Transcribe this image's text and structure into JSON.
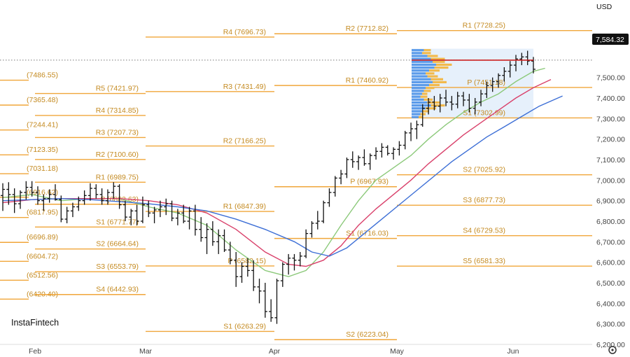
{
  "brand": "InstaFintech",
  "currency": "USD",
  "price_label": "7,584.32",
  "settings_icon": "gear-icon",
  "colors": {
    "pivot_line": "#f0a63a",
    "pivot_label": "#c48a20",
    "bar": "#111111",
    "ma_fast": "#8cc97a",
    "ma_mid": "#d9416b",
    "ma_slow": "#3d6fd6",
    "profile_blue": "#5b9bea",
    "profile_orange": "#f2b94b",
    "profile_zone": "#e6f0fb",
    "last_price_line": "#cc2222",
    "price_tag_bg": "#111111"
  },
  "chart_data": {
    "type": "ohlc-bar",
    "ylim": [
      6200,
      7850
    ],
    "y_ticks": [
      {
        "v": 6200,
        "label": "6,200.00"
      },
      {
        "v": 6300,
        "label": "6,300.00"
      },
      {
        "v": 6400,
        "label": "6,400.00"
      },
      {
        "v": 6500,
        "label": "6,500.00"
      },
      {
        "v": 6600,
        "label": "6,600.00"
      },
      {
        "v": 6700,
        "label": "6,700.00"
      },
      {
        "v": 6800,
        "label": "6,800.00"
      },
      {
        "v": 6900,
        "label": "6,900.00"
      },
      {
        "v": 7000,
        "label": "7,000.00"
      },
      {
        "v": 7100,
        "label": "7,100.00"
      },
      {
        "v": 7200,
        "label": "7,200.00"
      },
      {
        "v": 7300,
        "label": "7,300.00"
      },
      {
        "v": 7400,
        "label": "7,400.00"
      },
      {
        "v": 7500,
        "label": "7,500.00"
      },
      {
        "v": 7600,
        "label": "7,600.00"
      },
      {
        "v": 7700,
        "label": "7,700.00"
      }
    ],
    "x_ticks": [
      "Feb",
      "Mar",
      "Apr",
      "May",
      "Jun"
    ],
    "pivot_levels": [
      {
        "period": "jan",
        "label": "(7486.55)",
        "value": 7486.55
      },
      {
        "period": "jan",
        "label": "(7365.48)",
        "value": 7365.48
      },
      {
        "period": "jan",
        "label": "(7244.41)",
        "value": 7244.41
      },
      {
        "period": "jan",
        "label": "(7123.35)",
        "value": 7123.35
      },
      {
        "period": "jan",
        "label": "(7031.18)",
        "value": 7031.18
      },
      {
        "period": "jan",
        "label": "(6916.62)",
        "value": 6916.62
      },
      {
        "period": "jan",
        "label": "(6817.95)",
        "value": 6817.95
      },
      {
        "period": "jan",
        "label": "(6696.89)",
        "value": 6696.89
      },
      {
        "period": "jan",
        "label": "(6604.72)",
        "value": 6604.72
      },
      {
        "period": "jan",
        "label": "(6512.56)",
        "value": 6512.56
      },
      {
        "period": "jan",
        "label": "(6420.40)",
        "value": 6420.4
      },
      {
        "period": "feb",
        "label": "R5 (7421.97)",
        "value": 7421.97
      },
      {
        "period": "feb",
        "label": "R4 (7314.85)",
        "value": 7314.85
      },
      {
        "period": "feb",
        "label": "R3 (7207.73)",
        "value": 7207.73
      },
      {
        "period": "feb",
        "label": "R2 (7100.60)",
        "value": 7100.6
      },
      {
        "period": "feb",
        "label": "R1 (6989.75)",
        "value": 6989.75
      },
      {
        "period": "feb",
        "label": "P (6882.63)",
        "value": 6882.63
      },
      {
        "period": "feb",
        "label": "S1 (6771.77)",
        "value": 6771.77
      },
      {
        "period": "feb",
        "label": "S2 (6664.64)",
        "value": 6664.64
      },
      {
        "period": "feb",
        "label": "S3 (6553.79)",
        "value": 6553.79
      },
      {
        "period": "feb",
        "label": "S4 (6442.93)",
        "value": 6442.93
      },
      {
        "period": "mar",
        "label": "R4 (7696.73)",
        "value": 7696.73
      },
      {
        "period": "mar",
        "label": "R3 (7431.49)",
        "value": 7431.49
      },
      {
        "period": "mar",
        "label": "R2 (7166.25)",
        "value": 7166.25
      },
      {
        "period": "mar",
        "label": "R1 (6847.39)",
        "value": 6847.39
      },
      {
        "period": "mar",
        "label": "P (6582.15)",
        "value": 6582.15
      },
      {
        "period": "mar",
        "label": "S1 (6263.29)",
        "value": 6263.29
      },
      {
        "period": "apr",
        "label": "R2 (7712.82)",
        "value": 7712.82
      },
      {
        "period": "apr",
        "label": "R1 (7460.92)",
        "value": 7460.92
      },
      {
        "period": "apr",
        "label": "P (6967.93)",
        "value": 6967.93
      },
      {
        "period": "apr",
        "label": "S1 (6716.03)",
        "value": 6716.03
      },
      {
        "period": "apr",
        "label": "S2 (6223.04)",
        "value": 6223.04
      },
      {
        "period": "may",
        "label": "R1 (7728.25)",
        "value": 7728.25
      },
      {
        "period": "may",
        "label": "P (7451.18)",
        "value": 7451.18
      },
      {
        "period": "may",
        "label": "S1 (7302.99)",
        "value": 7302.99
      },
      {
        "period": "may",
        "label": "S2 (7025.92)",
        "value": 7025.92
      },
      {
        "period": "may",
        "label": "S3 (6877.73)",
        "value": 6877.73
      },
      {
        "period": "may",
        "label": "S4 (6729.53)",
        "value": 6729.53
      },
      {
        "period": "may",
        "label": "S5 (6581.33)",
        "value": 6581.33
      }
    ],
    "ohlc": [
      [
        6925,
        6985,
        6850,
        6955
      ],
      [
        6955,
        6990,
        6880,
        6930
      ],
      [
        6930,
        6960,
        6840,
        6885
      ],
      [
        6885,
        6950,
        6860,
        6940
      ],
      [
        6940,
        6995,
        6905,
        6965
      ],
      [
        6965,
        6995,
        6920,
        6940
      ],
      [
        6940,
        6970,
        6880,
        6900
      ],
      [
        6900,
        6930,
        6850,
        6910
      ],
      [
        6910,
        6955,
        6890,
        6930
      ],
      [
        6930,
        6980,
        6900,
        6905
      ],
      [
        6905,
        6925,
        6795,
        6810
      ],
      [
        6810,
        6870,
        6790,
        6850
      ],
      [
        6850,
        6890,
        6820,
        6870
      ],
      [
        6870,
        6920,
        6850,
        6900
      ],
      [
        6900,
        6950,
        6880,
        6925
      ],
      [
        6925,
        6985,
        6900,
        6960
      ],
      [
        6960,
        6980,
        6910,
        6930
      ],
      [
        6930,
        6960,
        6880,
        6900
      ],
      [
        6900,
        6955,
        6880,
        6940
      ],
      [
        6940,
        6990,
        6910,
        6970
      ],
      [
        6970,
        6980,
        6860,
        6880
      ],
      [
        6880,
        6900,
        6800,
        6820
      ],
      [
        6820,
        6860,
        6780,
        6850
      ],
      [
        6850,
        6880,
        6780,
        6800
      ],
      [
        6800,
        6920,
        6790,
        6880
      ],
      [
        6880,
        6900,
        6820,
        6840
      ],
      [
        6840,
        6870,
        6790,
        6855
      ],
      [
        6855,
        6900,
        6820,
        6870
      ],
      [
        6870,
        6910,
        6830,
        6885
      ],
      [
        6885,
        6900,
        6800,
        6815
      ],
      [
        6815,
        6860,
        6780,
        6840
      ],
      [
        6840,
        6880,
        6790,
        6800
      ],
      [
        6800,
        6870,
        6760,
        6850
      ],
      [
        6850,
        6880,
        6730,
        6760
      ],
      [
        6760,
        6820,
        6700,
        6720
      ],
      [
        6720,
        6790,
        6640,
        6760
      ],
      [
        6760,
        6800,
        6680,
        6700
      ],
      [
        6700,
        6760,
        6640,
        6730
      ],
      [
        6730,
        6760,
        6650,
        6660
      ],
      [
        6660,
        6700,
        6590,
        6610
      ],
      [
        6610,
        6650,
        6480,
        6530
      ],
      [
        6530,
        6600,
        6500,
        6580
      ],
      [
        6580,
        6620,
        6530,
        6560
      ],
      [
        6560,
        6610,
        6460,
        6480
      ],
      [
        6480,
        6520,
        6400,
        6460
      ],
      [
        6460,
        6500,
        6330,
        6360
      ],
      [
        6360,
        6420,
        6310,
        6330
      ],
      [
        6330,
        6520,
        6300,
        6510
      ],
      [
        6510,
        6600,
        6480,
        6590
      ],
      [
        6590,
        6640,
        6540,
        6620
      ],
      [
        6620,
        6640,
        6560,
        6610
      ],
      [
        6610,
        6650,
        6580,
        6630
      ],
      [
        6630,
        6760,
        6620,
        6740
      ],
      [
        6740,
        6800,
        6720,
        6790
      ],
      [
        6790,
        6850,
        6760,
        6800
      ],
      [
        6800,
        6900,
        6790,
        6890
      ],
      [
        6890,
        6960,
        6870,
        6940
      ],
      [
        6940,
        7020,
        6920,
        7010
      ],
      [
        7010,
        7050,
        6980,
        7030
      ],
      [
        7030,
        7110,
        7010,
        7100
      ],
      [
        7100,
        7140,
        7060,
        7090
      ],
      [
        7090,
        7120,
        7050,
        7110
      ],
      [
        7110,
        7150,
        7070,
        7080
      ],
      [
        7080,
        7130,
        7050,
        7120
      ],
      [
        7120,
        7160,
        7100,
        7140
      ],
      [
        7140,
        7180,
        7110,
        7160
      ],
      [
        7160,
        7170,
        7120,
        7130
      ],
      [
        7130,
        7160,
        7100,
        7150
      ],
      [
        7150,
        7190,
        7120,
        7170
      ],
      [
        7170,
        7240,
        7150,
        7230
      ],
      [
        7230,
        7280,
        7190,
        7250
      ],
      [
        7250,
        7290,
        7200,
        7270
      ],
      [
        7270,
        7370,
        7260,
        7350
      ],
      [
        7350,
        7400,
        7320,
        7380
      ],
      [
        7380,
        7410,
        7340,
        7360
      ],
      [
        7360,
        7420,
        7330,
        7400
      ],
      [
        7400,
        7440,
        7360,
        7380
      ],
      [
        7380,
        7410,
        7340,
        7370
      ],
      [
        7370,
        7430,
        7350,
        7410
      ],
      [
        7410,
        7430,
        7360,
        7390
      ],
      [
        7390,
        7420,
        7330,
        7350
      ],
      [
        7350,
        7400,
        7320,
        7380
      ],
      [
        7380,
        7440,
        7360,
        7420
      ],
      [
        7420,
        7480,
        7400,
        7460
      ],
      [
        7460,
        7500,
        7430,
        7480
      ],
      [
        7480,
        7520,
        7450,
        7510
      ],
      [
        7510,
        7550,
        7480,
        7530
      ],
      [
        7530,
        7580,
        7500,
        7560
      ],
      [
        7560,
        7610,
        7530,
        7590
      ],
      [
        7590,
        7620,
        7560,
        7600
      ],
      [
        7600,
        7630,
        7560,
        7580
      ],
      [
        7580,
        7600,
        7520,
        7540
      ]
    ],
    "moving_averages": [
      {
        "key": "ma_fast",
        "values": [
          [
            0,
            6915
          ],
          [
            5,
            6930
          ],
          [
            10,
            6900
          ],
          [
            15,
            6910
          ],
          [
            20,
            6910
          ],
          [
            25,
            6870
          ],
          [
            30,
            6840
          ],
          [
            35,
            6780
          ],
          [
            40,
            6660
          ],
          [
            45,
            6560
          ],
          [
            49,
            6530
          ],
          [
            52,
            6560
          ],
          [
            55,
            6650
          ],
          [
            58,
            6780
          ],
          [
            61,
            6900
          ],
          [
            64,
            7000
          ],
          [
            67,
            7060
          ],
          [
            70,
            7120
          ],
          [
            73,
            7200
          ],
          [
            76,
            7270
          ],
          [
            79,
            7330
          ],
          [
            82,
            7380
          ],
          [
            85,
            7420
          ],
          [
            88,
            7480
          ],
          [
            91,
            7530
          ],
          [
            93,
            7545
          ]
        ]
      },
      {
        "key": "ma_mid",
        "values": [
          [
            0,
            6890
          ],
          [
            5,
            6905
          ],
          [
            10,
            6910
          ],
          [
            15,
            6910
          ],
          [
            20,
            6910
          ],
          [
            25,
            6900
          ],
          [
            30,
            6880
          ],
          [
            35,
            6840
          ],
          [
            40,
            6760
          ],
          [
            45,
            6650
          ],
          [
            49,
            6590
          ],
          [
            52,
            6580
          ],
          [
            55,
            6610
          ],
          [
            58,
            6680
          ],
          [
            61,
            6780
          ],
          [
            64,
            6860
          ],
          [
            67,
            6930
          ],
          [
            70,
            7000
          ],
          [
            73,
            7080
          ],
          [
            76,
            7150
          ],
          [
            79,
            7220
          ],
          [
            82,
            7280
          ],
          [
            85,
            7340
          ],
          [
            88,
            7400
          ],
          [
            91,
            7450
          ],
          [
            94,
            7490
          ]
        ]
      },
      {
        "key": "ma_slow",
        "values": [
          [
            0,
            6900
          ],
          [
            5,
            6905
          ],
          [
            10,
            6910
          ],
          [
            15,
            6905
          ],
          [
            20,
            6895
          ],
          [
            25,
            6885
          ],
          [
            30,
            6870
          ],
          [
            35,
            6850
          ],
          [
            40,
            6810
          ],
          [
            45,
            6760
          ],
          [
            50,
            6700
          ],
          [
            53,
            6650
          ],
          [
            56,
            6630
          ],
          [
            59,
            6670
          ],
          [
            62,
            6740
          ],
          [
            65,
            6810
          ],
          [
            68,
            6880
          ],
          [
            71,
            6950
          ],
          [
            74,
            7020
          ],
          [
            77,
            7090
          ],
          [
            80,
            7150
          ],
          [
            83,
            7210
          ],
          [
            86,
            7260
          ],
          [
            89,
            7310
          ],
          [
            92,
            7360
          ],
          [
            96,
            7410
          ]
        ]
      }
    ],
    "volume_profile": {
      "range": [
        7300,
        7640
      ],
      "rows": [
        [
          0.35,
          0.2
        ],
        [
          0.3,
          0.25
        ],
        [
          0.45,
          0.3
        ],
        [
          0.55,
          0.4
        ],
        [
          0.6,
          0.35
        ],
        [
          0.7,
          0.45
        ],
        [
          0.65,
          0.4
        ],
        [
          0.5,
          0.3
        ],
        [
          0.4,
          0.25
        ],
        [
          0.45,
          0.3
        ],
        [
          0.55,
          0.35
        ],
        [
          0.6,
          0.4
        ],
        [
          0.5,
          0.3
        ],
        [
          0.4,
          0.25
        ],
        [
          0.35,
          0.2
        ],
        [
          0.3,
          0.15
        ],
        [
          0.25,
          0.2
        ],
        [
          0.35,
          0.25
        ],
        [
          0.45,
          0.35
        ],
        [
          0.55,
          0.4
        ],
        [
          0.4,
          0.3
        ],
        [
          0.3,
          0.2
        ],
        [
          0.25,
          0.15
        ],
        [
          0.2,
          0.12
        ]
      ]
    },
    "last_price": 7584.32
  }
}
